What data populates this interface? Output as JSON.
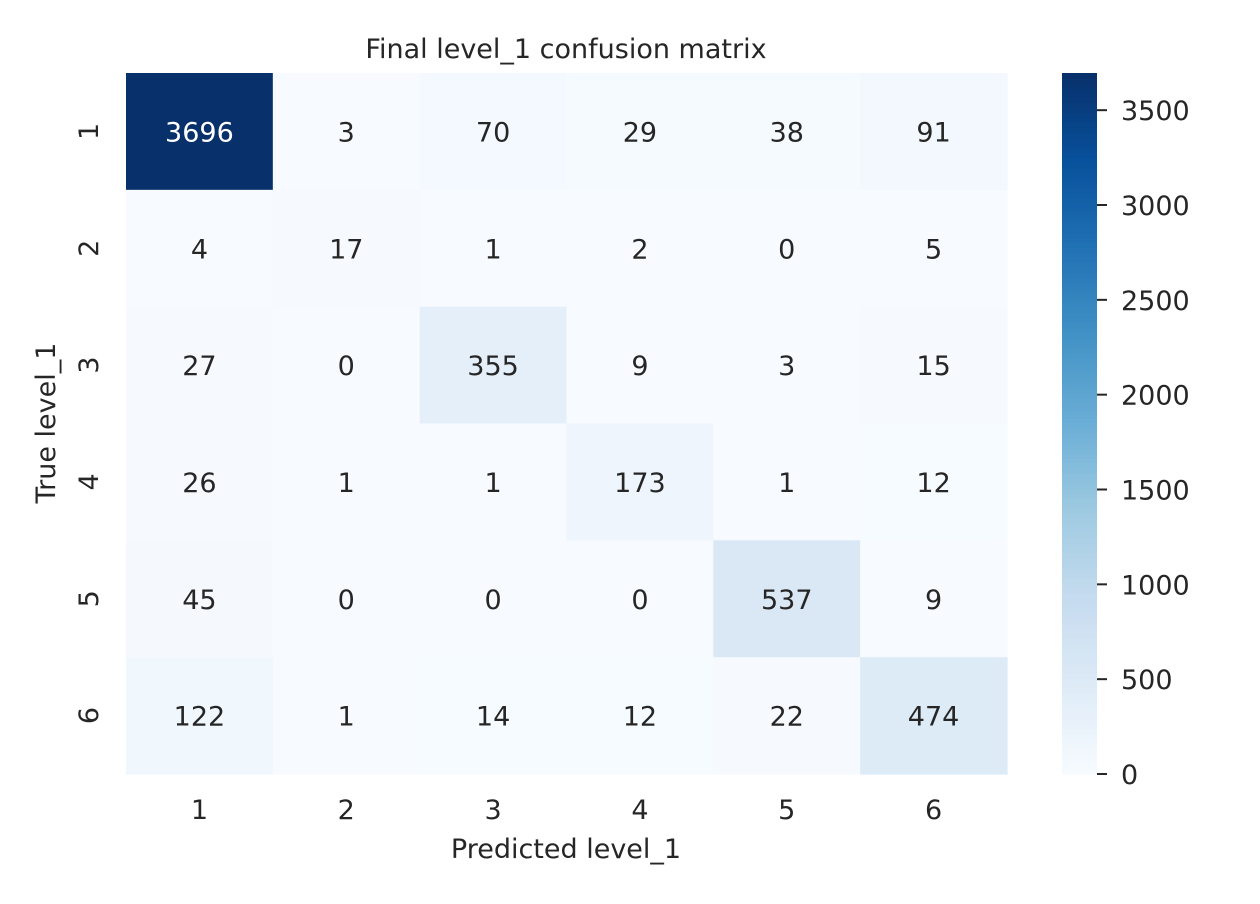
{
  "chart_data": {
    "type": "heatmap",
    "title": "Final level_1 confusion matrix",
    "xlabel": "Predicted level_1",
    "ylabel": "True level_1",
    "x_categories": [
      "1",
      "2",
      "3",
      "4",
      "5",
      "6"
    ],
    "y_categories": [
      "1",
      "2",
      "3",
      "4",
      "5",
      "6"
    ],
    "values": [
      [
        3696,
        3,
        70,
        29,
        38,
        91
      ],
      [
        4,
        17,
        1,
        2,
        0,
        5
      ],
      [
        27,
        0,
        355,
        9,
        3,
        15
      ],
      [
        26,
        1,
        1,
        173,
        1,
        12
      ],
      [
        45,
        0,
        0,
        0,
        537,
        9
      ],
      [
        122,
        1,
        14,
        12,
        22,
        474
      ]
    ],
    "colorbar": {
      "colormap": "Blues",
      "min": 0,
      "max": 3696,
      "ticks": [
        0,
        500,
        1000,
        1500,
        2000,
        2500,
        3000,
        3500
      ]
    },
    "colors": {
      "text_dark": "#262626",
      "text_light": "#ffffff"
    }
  }
}
